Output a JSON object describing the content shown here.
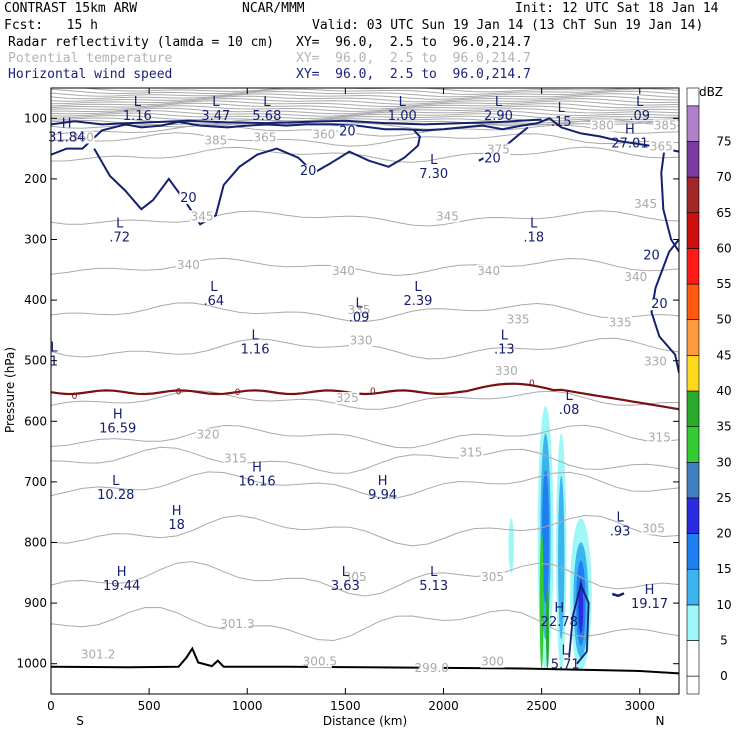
{
  "header": {
    "model": "CONTRAST 15km ARW",
    "center": "NCAR/MMM",
    "init": "Init: 12 UTC Sat 18 Jan 14",
    "fcst": "Fcst:   15 h",
    "valid": "Valid: 03 UTC Sun 19 Jan 14 (13 ChT Sun 19 Jan 14)",
    "fields": [
      {
        "name": "Radar reflectivity (lamda = 10 cm)",
        "xy": "XY=  96.0,  2.5 to  96.0,214.7",
        "color": "#000000"
      },
      {
        "name": "Potential temperature",
        "xy": "XY=  96.0,  2.5 to  96.0,214.7",
        "color": "#b4b4b4"
      },
      {
        "name": "Horizontal wind speed",
        "xy": "XY=  96.0,  2.5 to  96.0,214.7",
        "color": "#1a237e"
      }
    ]
  },
  "colors": {
    "theta": "#aaaaaa",
    "wind": "#142070",
    "zero": "#7a1010",
    "terrain": "#000000"
  },
  "chart_data": {
    "type": "contour",
    "xlabel": "Distance (km)",
    "ylabel": "Pressure (hPa)",
    "xlim": [
      0,
      3200
    ],
    "ylim": [
      1050,
      50
    ],
    "x_ticks": [
      0,
      500,
      1000,
      1500,
      2000,
      2500,
      3000
    ],
    "y_ticks": [
      100,
      200,
      300,
      400,
      500,
      600,
      700,
      800,
      900,
      1000
    ],
    "x_end_labels": {
      "left": "S",
      "right": "N"
    },
    "colorbar": {
      "unit": "dBZ",
      "levels": [
        0,
        5,
        10,
        15,
        20,
        25,
        30,
        35,
        40,
        45,
        50,
        55,
        60,
        65,
        70,
        75
      ],
      "colors": [
        "#ffffff",
        "#9ef7f7",
        "#3cb4f0",
        "#1f7ef0",
        "#2b2ce0",
        "#3f7fbf",
        "#33cc33",
        "#2aaa2a",
        "#ffd71f",
        "#ff9a3c",
        "#ff5a10",
        "#ff1a1a",
        "#cc1010",
        "#a02828",
        "#7a3aa0",
        "#b080c8"
      ]
    },
    "theta_labels": [
      {
        "text": "380",
        "x": 2810,
        "p": 115
      },
      {
        "text": "385",
        "x": 3130,
        "p": 115
      },
      {
        "text": "360",
        "x": 160,
        "p": 135
      },
      {
        "text": "385",
        "x": 840,
        "p": 140
      },
      {
        "text": "360",
        "x": 1390,
        "p": 130
      },
      {
        "text": "365",
        "x": 1090,
        "p": 135
      },
      {
        "text": "375",
        "x": 2280,
        "p": 155
      },
      {
        "text": "365",
        "x": 3110,
        "p": 150
      },
      {
        "text": "345",
        "x": 770,
        "p": 265
      },
      {
        "text": "345",
        "x": 2020,
        "p": 265
      },
      {
        "text": "345",
        "x": 3030,
        "p": 245
      },
      {
        "text": "340",
        "x": 700,
        "p": 345
      },
      {
        "text": "340",
        "x": 1490,
        "p": 355
      },
      {
        "text": "340",
        "x": 2230,
        "p": 355
      },
      {
        "text": "340",
        "x": 2980,
        "p": 365
      },
      {
        "text": "335",
        "x": 1570,
        "p": 420
      },
      {
        "text": "335",
        "x": 2380,
        "p": 435
      },
      {
        "text": "335",
        "x": 2900,
        "p": 440
      },
      {
        "text": "330",
        "x": 1580,
        "p": 470
      },
      {
        "text": "330",
        "x": 2320,
        "p": 520
      },
      {
        "text": "330",
        "x": 3080,
        "p": 505
      },
      {
        "text": "325",
        "x": 1510,
        "p": 565
      },
      {
        "text": "320",
        "x": 800,
        "p": 625
      },
      {
        "text": "315",
        "x": 940,
        "p": 665
      },
      {
        "text": "315",
        "x": 2140,
        "p": 655
      },
      {
        "text": "315",
        "x": 3100,
        "p": 630
      },
      {
        "text": "305",
        "x": 3070,
        "p": 780
      },
      {
        "text": "305",
        "x": 2250,
        "p": 860
      },
      {
        "text": "301.2",
        "x": 240,
        "p": 988
      },
      {
        "text": "301.3",
        "x": 950,
        "p": 938
      },
      {
        "text": "300.5",
        "x": 1370,
        "p": 1000
      },
      {
        "text": "299.0",
        "x": 1940,
        "p": 1010
      },
      {
        "text": "300",
        "x": 2250,
        "p": 1000
      },
      {
        "text": "305",
        "x": 1550,
        "p": 860
      }
    ],
    "wind_labels": [
      {
        "text": "20",
        "x": 1510,
        "p": 125
      },
      {
        "text": "20",
        "x": 2250,
        "p": 170
      },
      {
        "text": "20",
        "x": 1310,
        "p": 190
      },
      {
        "text": "20",
        "x": 700,
        "p": 235
      },
      {
        "text": "20",
        "x": 3060,
        "p": 330
      },
      {
        "text": "20",
        "x": 3100,
        "p": 410
      }
    ],
    "zero_labels": [
      {
        "text": "0",
        "x": 120,
        "p": 558
      },
      {
        "text": "0",
        "x": 650,
        "p": 551
      },
      {
        "text": "0",
        "x": 950,
        "p": 552
      },
      {
        "text": "0",
        "x": 1640,
        "p": 550
      },
      {
        "text": "0",
        "x": 2450,
        "p": 537
      }
    ],
    "extrema": [
      {
        "type": "L",
        "value": "1.16",
        "x": 440,
        "p": 80
      },
      {
        "type": "L",
        "value": "3.47",
        "x": 840,
        "p": 80
      },
      {
        "type": "L",
        "value": "5.68",
        "x": 1100,
        "p": 80
      },
      {
        "type": "L",
        "value": "1.00",
        "x": 1790,
        "p": 80
      },
      {
        "type": "L",
        "value": "2.90",
        "x": 2280,
        "p": 80
      },
      {
        "type": "L",
        "value": ".15",
        "x": 2600,
        "p": 90
      },
      {
        "type": "L",
        "value": ".09",
        "x": 3000,
        "p": 80
      },
      {
        "type": "H",
        "value": "31.84",
        "x": 80,
        "p": 115
      },
      {
        "type": "H",
        "value": "27.01",
        "x": 2950,
        "p": 125
      },
      {
        "type": "L",
        "value": "7.30",
        "x": 1950,
        "p": 175
      },
      {
        "type": "L",
        "value": ".72",
        "x": 350,
        "p": 280
      },
      {
        "type": "L",
        "value": ".18",
        "x": 2460,
        "p": 280
      },
      {
        "type": "L",
        "value": ".64",
        "x": 830,
        "p": 385
      },
      {
        "type": "L",
        "value": "2.39",
        "x": 1870,
        "p": 385
      },
      {
        "type": "L",
        "value": ".09",
        "x": 1570,
        "p": 412
      },
      {
        "type": "L",
        "value": "1.16",
        "x": 1040,
        "p": 465
      },
      {
        "type": "L",
        "value": ".13",
        "x": 2310,
        "p": 465
      },
      {
        "type": "L",
        "value": "1",
        "x": 15,
        "p": 485
      },
      {
        "type": "L",
        "value": ".08",
        "x": 2640,
        "p": 565
      },
      {
        "type": "H",
        "value": "16.59",
        "x": 340,
        "p": 595
      },
      {
        "type": "H",
        "value": "16.16",
        "x": 1050,
        "p": 683
      },
      {
        "type": "L",
        "value": "10.28",
        "x": 330,
        "p": 705
      },
      {
        "type": "H",
        "value": "9.94",
        "x": 1690,
        "p": 705
      },
      {
        "type": "H",
        "value": "18",
        "x": 640,
        "p": 755
      },
      {
        "type": "L",
        "value": ".93",
        "x": 2900,
        "p": 765
      },
      {
        "type": "H",
        "value": "19.44",
        "x": 360,
        "p": 855
      },
      {
        "type": "L",
        "value": "3.63",
        "x": 1500,
        "p": 855
      },
      {
        "type": "L",
        "value": "5.13",
        "x": 1950,
        "p": 855
      },
      {
        "type": "H",
        "value": "22.78",
        "x": 2590,
        "p": 915
      },
      {
        "type": "H",
        "value": "19.17",
        "x": 3050,
        "p": 885
      },
      {
        "type": "L",
        "value": "5.71",
        "x": 2620,
        "p": 985
      }
    ]
  }
}
